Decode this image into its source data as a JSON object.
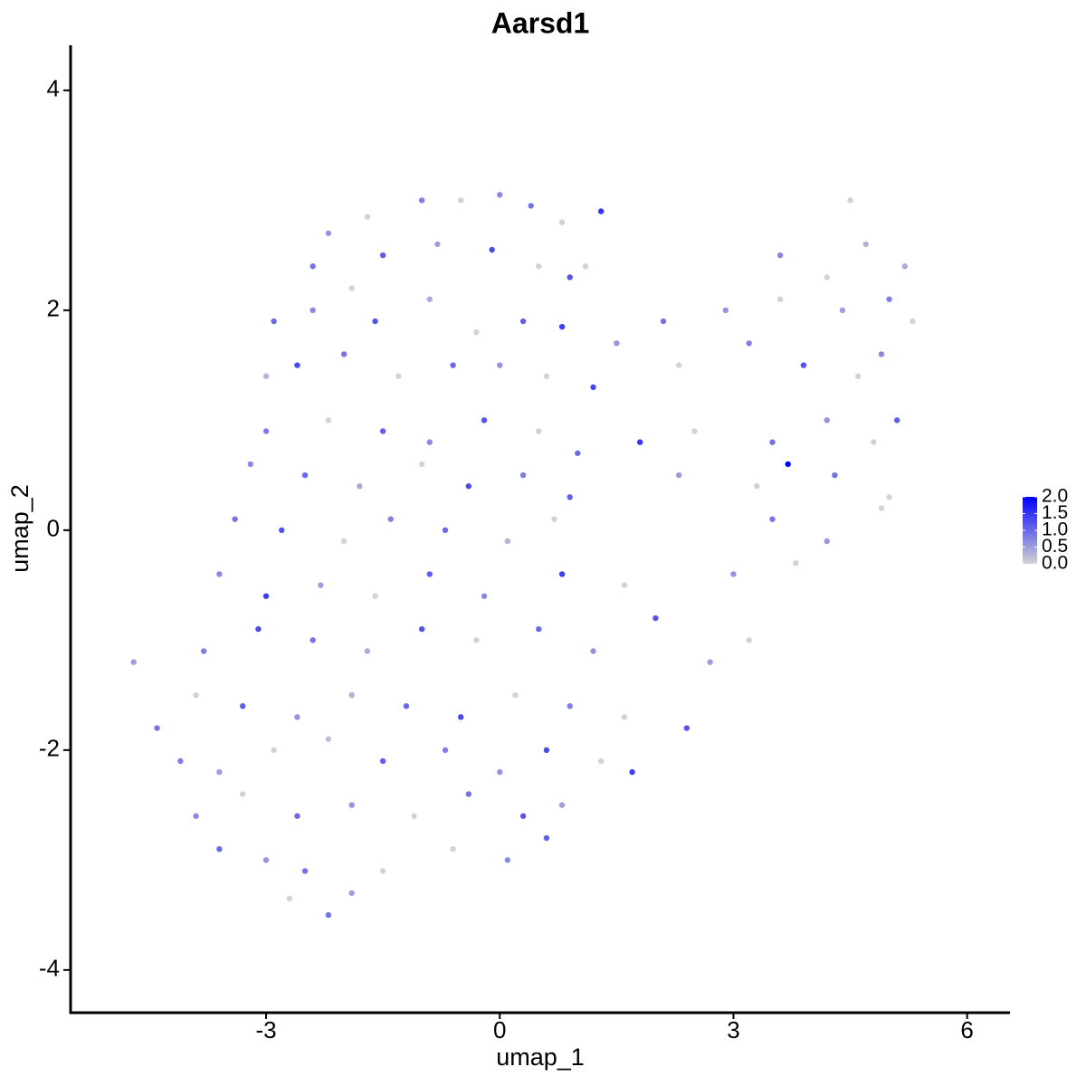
{
  "chart_data": {
    "type": "scatter",
    "title": "Aarsd1",
    "x_label": "umap_1",
    "y_label": "umap_2",
    "x": [
      -1.7,
      -1,
      -0.5,
      0,
      0.4,
      0.8,
      -2.2,
      1.3,
      1.1,
      -2.4,
      -1.5,
      -0.8,
      -0.1,
      0.5,
      0.9,
      -1.9,
      4.5,
      4.7,
      3.6,
      5.2,
      4.2,
      -2.9,
      -2.4,
      -1.6,
      -0.9,
      -0.3,
      0.3,
      0.8,
      2.1,
      2.9,
      3.6,
      4.4,
      5.0,
      5.3,
      1.5,
      -3.0,
      -2.6,
      -2.0,
      -1.3,
      -0.6,
      0,
      0.6,
      1.2,
      2.3,
      3.2,
      3.9,
      4.6,
      4.9,
      -3.0,
      -2.2,
      -1.5,
      -0.9,
      -0.2,
      0.5,
      1.0,
      1.8,
      2.5,
      3.5,
      4.2,
      5.1,
      4.8,
      -3.2,
      -2.5,
      -1.8,
      -1.0,
      -0.4,
      0.3,
      0.9,
      2.3,
      3.7,
      4.3,
      5.0,
      3.3,
      -3.4,
      -2.8,
      -2.0,
      -1.4,
      -0.7,
      0.1,
      0.7,
      3.5,
      4.2,
      4.9,
      -3.6,
      -3.0,
      -2.3,
      -1.6,
      -0.9,
      -0.2,
      0.8,
      1.6,
      3.0,
      3.8,
      -4.7,
      -3.8,
      -3.1,
      -2.4,
      -1.7,
      -1.0,
      -0.3,
      0.5,
      1.2,
      2.0,
      2.7,
      3.2,
      -4.4,
      -3.9,
      -3.3,
      -2.6,
      -1.9,
      -1.2,
      -0.5,
      0.2,
      0.9,
      1.6,
      2.4,
      -4.1,
      -3.6,
      -2.9,
      -2.2,
      -1.5,
      -0.7,
      0,
      0.6,
      1.3,
      1.7,
      -3.9,
      -3.3,
      -2.6,
      -1.9,
      -1.1,
      -0.4,
      0.3,
      0.8,
      -3.6,
      -3.0,
      -2.5,
      -1.5,
      -0.6,
      0.1,
      0.6,
      -2.2,
      -2.7,
      -1.9
    ],
    "y": [
      2.85,
      3.0,
      3.0,
      3.05,
      2.95,
      2.8,
      2.7,
      2.9,
      2.4,
      2.4,
      2.5,
      2.6,
      2.55,
      2.4,
      2.3,
      2.2,
      3.0,
      2.6,
      2.5,
      2.4,
      2.3,
      1.9,
      2.0,
      1.9,
      2.1,
      1.8,
      1.9,
      1.85,
      1.9,
      2.0,
      2.1,
      2.0,
      2.1,
      1.9,
      1.7,
      1.4,
      1.5,
      1.6,
      1.4,
      1.5,
      1.5,
      1.4,
      1.3,
      1.5,
      1.7,
      1.5,
      1.4,
      1.6,
      0.9,
      1.0,
      0.9,
      0.8,
      1.0,
      0.9,
      0.7,
      0.8,
      0.9,
      0.8,
      1.0,
      1.0,
      0.8,
      0.6,
      0.5,
      0.4,
      0.6,
      0.4,
      0.5,
      0.3,
      0.5,
      0.6,
      0.5,
      0.3,
      0.4,
      0.1,
      0.0,
      -0.1,
      0.1,
      0.0,
      -0.1,
      0.1,
      0.1,
      -0.1,
      0.2,
      -0.4,
      -0.6,
      -0.5,
      -0.6,
      -0.4,
      -0.6,
      -0.4,
      -0.5,
      -0.4,
      -0.3,
      -1.2,
      -1.1,
      -0.9,
      -1.0,
      -1.1,
      -0.9,
      -1.0,
      -0.9,
      -1.1,
      -0.8,
      -1.2,
      -1.0,
      -1.8,
      -1.5,
      -1.6,
      -1.7,
      -1.5,
      -1.6,
      -1.7,
      -1.5,
      -1.6,
      -1.7,
      -1.8,
      -2.1,
      -2.2,
      -2.0,
      -1.9,
      -2.1,
      -2.0,
      -2.2,
      -2.0,
      -2.1,
      -2.2,
      -2.6,
      -2.4,
      -2.6,
      -2.5,
      -2.6,
      -2.4,
      -2.6,
      -2.5,
      -2.9,
      -3.0,
      -3.1,
      -3.1,
      -2.9,
      -3.0,
      -2.8,
      -3.5,
      -3.35,
      -3.3
    ],
    "values": [
      0,
      0.8,
      0,
      0.7,
      0.9,
      0,
      0.6,
      1.5,
      0,
      0.9,
      1.1,
      0.5,
      1.3,
      0,
      1.2,
      0,
      0,
      0.3,
      0.7,
      0.4,
      0,
      1.0,
      0.7,
      1.2,
      0.4,
      0,
      1.1,
      1.4,
      0.9,
      0.6,
      0,
      0.5,
      0.8,
      0,
      0.6,
      0.3,
      1.3,
      0.9,
      0,
      1.0,
      0.6,
      0,
      1.3,
      0,
      0.8,
      1.2,
      0,
      0.7,
      0.8,
      0,
      1.1,
      0.7,
      1.2,
      0,
      1.0,
      1.5,
      0,
      0.9,
      0.6,
      1.1,
      0,
      0.7,
      1.0,
      0.4,
      0,
      1.3,
      0.8,
      1.1,
      0.5,
      2.0,
      0.9,
      0,
      0,
      0.9,
      1.2,
      0,
      0.8,
      1.0,
      0.3,
      0,
      0.9,
      0.6,
      0,
      0.7,
      1.4,
      0.5,
      0,
      1.1,
      0.7,
      1.4,
      0,
      0.6,
      0,
      0.5,
      0.8,
      1.3,
      0.9,
      0.4,
      1.2,
      0,
      1.0,
      0.6,
      1.2,
      0.5,
      0,
      0.9,
      0,
      1.1,
      0.6,
      0.3,
      1.0,
      1.3,
      0,
      0.8,
      0,
      1.2,
      0.8,
      0.5,
      0,
      0.2,
      1.1,
      0.8,
      0.6,
      1.3,
      0,
      1.4,
      0.7,
      0,
      1.0,
      0.6,
      0,
      0.9,
      1.2,
      0.5,
      1.0,
      0.6,
      0.9,
      0,
      0,
      0.7,
      1.1,
      0.9,
      0,
      0.5
    ],
    "color_low": "#d3d3d3",
    "color_high": "#0000ff",
    "xlim": [
      -5.51,
      6.55
    ],
    "ylim": [
      -4.38,
      4.41
    ],
    "xticks": [
      -3,
      0,
      3,
      6
    ],
    "yticks": [
      -4,
      -2,
      0,
      2,
      4
    ],
    "colorbar_lim": [
      0,
      2
    ],
    "colorbar_ticks": [
      {
        "value": 0,
        "label": "0.0"
      },
      {
        "value": 0.5,
        "label": "0.5"
      },
      {
        "value": 1,
        "label": "1.0"
      },
      {
        "value": 1.5,
        "label": "1.5"
      },
      {
        "value": 2,
        "label": "2.0"
      }
    ]
  }
}
